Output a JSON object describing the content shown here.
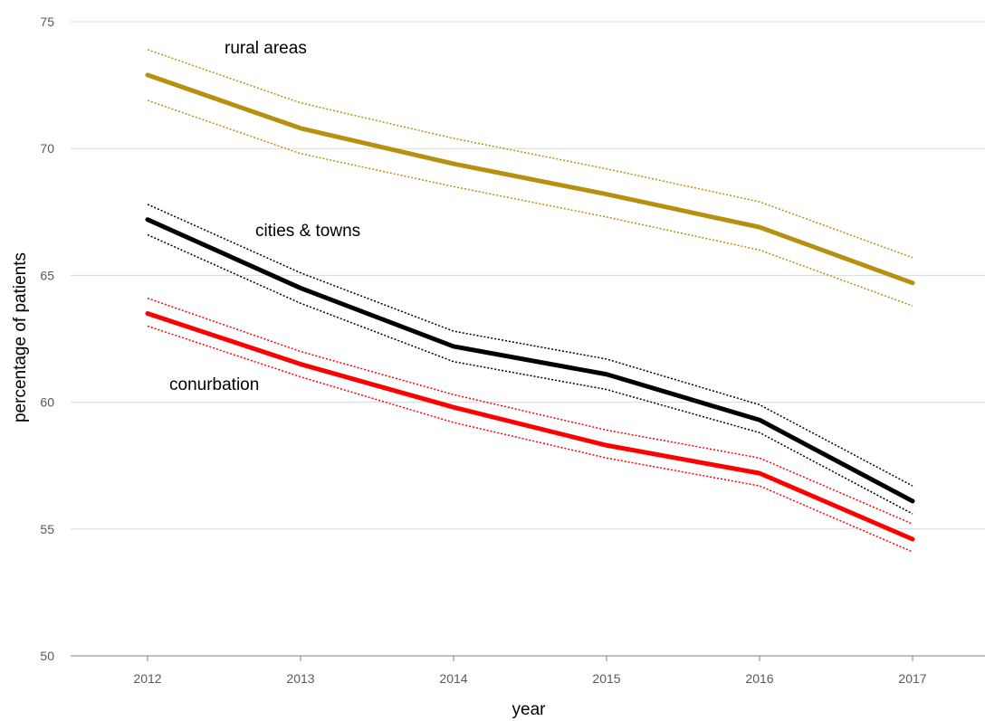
{
  "chart_data": {
    "type": "line",
    "xlabel": "year",
    "ylabel": "percentage of patients",
    "x": [
      2012,
      2013,
      2014,
      2015,
      2016,
      2017
    ],
    "ylim": [
      50,
      75
    ],
    "yticks": [
      50,
      55,
      60,
      65,
      70,
      75
    ],
    "grid": "horizontal",
    "series": [
      {
        "name": "rural areas",
        "color": "#b8900f",
        "values": [
          72.9,
          70.8,
          69.4,
          68.2,
          66.9,
          64.7
        ],
        "upper": [
          73.9,
          71.8,
          70.4,
          69.2,
          67.9,
          65.7
        ],
        "lower": [
          71.9,
          69.8,
          68.5,
          67.3,
          66.0,
          63.8
        ]
      },
      {
        "name": "cities & towns",
        "color": "#000000",
        "values": [
          67.2,
          64.5,
          62.2,
          61.1,
          59.3,
          56.1
        ],
        "upper": [
          67.8,
          65.1,
          62.8,
          61.7,
          59.9,
          56.7
        ],
        "lower": [
          66.6,
          63.9,
          61.6,
          60.5,
          58.8,
          55.6
        ]
      },
      {
        "name": "conurbation",
        "color": "#ff0000",
        "values": [
          63.5,
          61.5,
          59.8,
          58.3,
          57.2,
          54.6
        ],
        "upper": [
          64.1,
          62.0,
          60.3,
          58.9,
          57.8,
          55.2
        ],
        "lower": [
          63.0,
          61.0,
          59.2,
          57.8,
          56.7,
          54.1
        ]
      }
    ]
  }
}
